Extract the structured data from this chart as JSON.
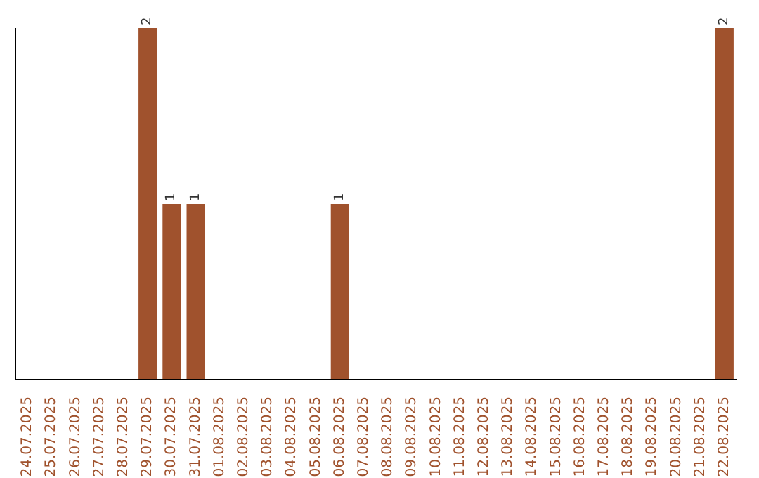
{
  "chart_data": {
    "type": "bar",
    "categories": [
      "24.07.2025",
      "25.07.2025",
      "26.07.2025",
      "27.07.2025",
      "28.07.2025",
      "29.07.2025",
      "30.07.2025",
      "31.07.2025",
      "01.08.2025",
      "02.08.2025",
      "03.08.2025",
      "04.08.2025",
      "05.08.2025",
      "06.08.2025",
      "07.08.2025",
      "08.08.2025",
      "09.08.2025",
      "10.08.2025",
      "11.08.2025",
      "12.08.2025",
      "13.08.2025",
      "14.08.2025",
      "15.08.2025",
      "16.08.2025",
      "17.08.2025",
      "18.08.2025",
      "19.08.2025",
      "20.08.2025",
      "21.08.2025",
      "22.08.2025"
    ],
    "values": [
      null,
      null,
      null,
      null,
      null,
      2,
      1,
      1,
      null,
      null,
      null,
      null,
      null,
      1,
      null,
      null,
      null,
      null,
      null,
      null,
      null,
      null,
      null,
      null,
      null,
      null,
      null,
      null,
      null,
      2
    ],
    "data_labels": true,
    "color": "#a0522d",
    "tick_labels": "x"
  }
}
